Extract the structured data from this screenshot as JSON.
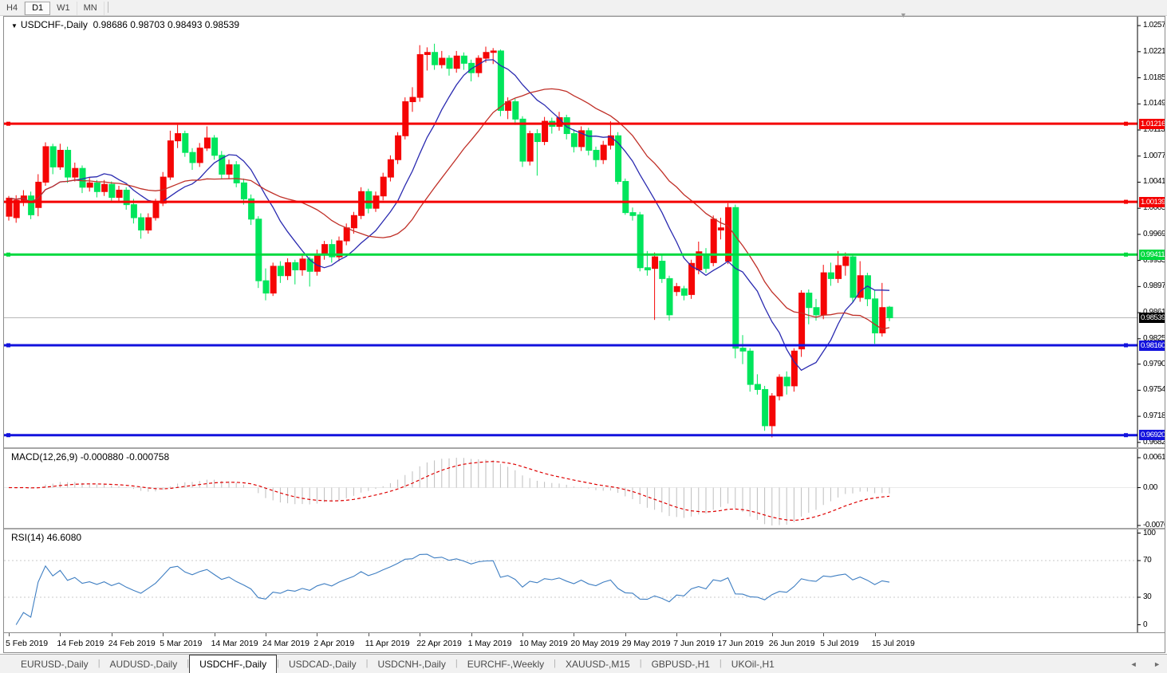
{
  "toolbar": {
    "buttons": [
      {
        "label": "H4",
        "active": false
      },
      {
        "label": "D1",
        "active": true
      },
      {
        "label": "W1",
        "active": false
      },
      {
        "label": "MN",
        "active": false
      }
    ]
  },
  "title": {
    "dropdown_icon": "▼",
    "symbol": "USDCHF-,Daily",
    "ohlc": "0.98686 0.98703 0.98493 0.98539"
  },
  "window": {
    "collapse_icon": "▼",
    "scroll_left_icon": "◄",
    "scroll_right_icon": "►"
  },
  "chart_data": {
    "type": "candlestick",
    "symbol": "USDCHF",
    "timeframe": "Daily",
    "quote": {
      "open": 0.98686,
      "high": 0.98703,
      "low": 0.98493,
      "close": 0.98539
    },
    "colors": {
      "up": "#F50505",
      "down": "#00E55C",
      "ma_fast": "#2A2AB0",
      "ma_slow": "#C03028",
      "hline_red": "#F40000",
      "hline_green": "#00D93E",
      "hline_blue": "#1212DD",
      "ask_line": "#B9B9B9",
      "current_tag_bg": "#000000",
      "macd_hist": "#BEBEBE",
      "macd_signal": "#DE0000",
      "rsi_line": "#3E7EC2",
      "level_dash": "#C8C8C8",
      "axis_line": "#000000"
    },
    "price_axis_labels": [
      "1.02570",
      "1.02210",
      "1.01850",
      "1.01490",
      "1.01130",
      "1.00770",
      "1.00410",
      "1.00050",
      "0.99690",
      "0.99330",
      "0.98970",
      "0.98610",
      "0.98250",
      "0.97900",
      "0.97540",
      "0.97180",
      "0.96820"
    ],
    "hlines": [
      {
        "price": 1.01216,
        "label": "1.01216",
        "color": "#F40000",
        "name": "resistance-upper"
      },
      {
        "price": 1.00139,
        "label": "1.00139",
        "color": "#F40000",
        "name": "resistance-lower"
      },
      {
        "price": 0.99411,
        "label": "0.99411",
        "color": "#00D93E",
        "name": "pivot-green"
      },
      {
        "price": 0.9816,
        "label": "0.98160",
        "color": "#1212DD",
        "name": "support-upper"
      },
      {
        "price": 0.9692,
        "label": "0.96920",
        "color": "#1212DD",
        "name": "support-lower"
      }
    ],
    "current_price": {
      "value": 0.98539,
      "label": "0.98539"
    },
    "moving_averages": [
      {
        "period": 10,
        "color": "#2A2AB0",
        "name": "ma-fast"
      },
      {
        "period": 21,
        "color": "#C03028",
        "name": "ma-slow"
      }
    ],
    "x_axis": {
      "labels": [
        "5 Feb 2019",
        "14 Feb 2019",
        "24 Feb 2019",
        "5 Mar 2019",
        "14 Mar 2019",
        "24 Mar 2019",
        "2 Apr 2019",
        "11 Apr 2019",
        "22 Apr 2019",
        "1 May 2019",
        "10 May 2019",
        "20 May 2019",
        "29 May 2019",
        "7 Jun 2019",
        "17 Jun 2019",
        "26 Jun 2019",
        "5 Jul 2019",
        "15 Jul 2019"
      ],
      "indices": [
        0,
        7,
        14,
        21,
        28,
        35,
        42,
        49,
        56,
        63,
        70,
        77,
        84,
        91,
        97,
        104,
        111,
        118
      ]
    },
    "candles": [
      [
        0.9994,
        1.0022,
        0.9988,
        1.0019
      ],
      [
        0.9992,
        1.0023,
        0.9985,
        1.0016
      ],
      [
        1.0016,
        1.003,
        1.0008,
        1.0022
      ],
      [
        1.0022,
        1.0028,
        0.999,
        0.9996
      ],
      [
        1.0006,
        1.0052,
        0.9994,
        1.0041
      ],
      [
        1.0041,
        1.0096,
        1.0036,
        1.009
      ],
      [
        1.009,
        1.0094,
        1.0052,
        1.0062
      ],
      [
        1.0062,
        1.0094,
        1.0058,
        1.0085
      ],
      [
        1.0085,
        1.009,
        1.004,
        1.0048
      ],
      [
        1.0048,
        1.0068,
        1.0042,
        1.006
      ],
      [
        1.006,
        1.0064,
        1.0026,
        1.0034
      ],
      [
        1.0034,
        1.0048,
        1.0028,
        1.004
      ],
      [
        1.004,
        1.0044,
        1.002,
        1.0028
      ],
      [
        1.0028,
        1.0044,
        1.0022,
        1.0038
      ],
      [
        1.0038,
        1.0042,
        1.0014,
        1.002
      ],
      [
        1.002,
        1.0036,
        1.0014,
        1.003
      ],
      [
        1.003,
        1.0034,
        1.0003,
        1.001
      ],
      [
        1.001,
        1.0018,
        0.9984,
        0.9992
      ],
      [
        0.9992,
        0.9998,
        0.9963,
        0.9975
      ],
      [
        0.9975,
        0.9998,
        0.997,
        0.9992
      ],
      [
        0.9992,
        1.0018,
        0.9988,
        1.0012
      ],
      [
        1.0012,
        1.0055,
        1.0008,
        1.0048
      ],
      [
        1.0048,
        1.0112,
        1.0044,
        1.0098
      ],
      [
        1.0098,
        1.012,
        1.0088,
        1.0108
      ],
      [
        1.0108,
        1.0112,
        1.0076,
        1.0082
      ],
      [
        1.0082,
        1.0088,
        1.0058,
        1.0068
      ],
      [
        1.0068,
        1.0095,
        1.0062,
        1.0088
      ],
      [
        1.0088,
        1.0118,
        1.0084,
        1.0102
      ],
      [
        1.0102,
        1.0106,
        1.0072,
        1.0078
      ],
      [
        1.0078,
        1.0084,
        1.0046,
        1.0052
      ],
      [
        1.0052,
        1.0072,
        1.0046,
        1.0065
      ],
      [
        1.0065,
        1.007,
        1.0034,
        1.004
      ],
      [
        1.004,
        1.0046,
        1.001,
        1.0018
      ],
      [
        1.0018,
        1.0024,
        0.9982,
        0.999
      ],
      [
        0.999,
        0.9994,
        0.9895,
        0.9905
      ],
      [
        0.9905,
        0.9922,
        0.9878,
        0.9888
      ],
      [
        0.9888,
        0.993,
        0.9884,
        0.9925
      ],
      [
        0.9925,
        0.9932,
        0.9902,
        0.9912
      ],
      [
        0.9912,
        0.9936,
        0.9906,
        0.993
      ],
      [
        0.993,
        0.9934,
        0.99,
        0.992
      ],
      [
        0.992,
        0.994,
        0.9912,
        0.9935
      ],
      [
        0.9935,
        0.9938,
        0.9897,
        0.9918
      ],
      [
        0.9918,
        0.9948,
        0.9912,
        0.9942
      ],
      [
        0.9942,
        0.996,
        0.9934,
        0.9955
      ],
      [
        0.9955,
        0.9962,
        0.993,
        0.9938
      ],
      [
        0.9938,
        0.9966,
        0.9932,
        0.996
      ],
      [
        0.996,
        0.9984,
        0.9954,
        0.9978
      ],
      [
        0.9978,
        1.0,
        0.997,
        0.9995
      ],
      [
        0.9995,
        1.0034,
        0.999,
        1.0028
      ],
      [
        1.0028,
        1.0032,
        0.9998,
        1.0005
      ],
      [
        1.0005,
        1.0028,
        1.0,
        1.0022
      ],
      [
        1.0022,
        1.0054,
        1.0016,
        1.0048
      ],
      [
        1.0048,
        1.0078,
        1.0042,
        1.0072
      ],
      [
        1.0072,
        1.011,
        1.0066,
        1.0105
      ],
      [
        1.0105,
        1.0158,
        1.01,
        1.0152
      ],
      [
        1.0152,
        1.0172,
        1.0138,
        1.0158
      ],
      [
        1.0158,
        1.023,
        1.0152,
        1.0217
      ],
      [
        1.0217,
        1.0227,
        1.0195,
        1.022
      ],
      [
        1.022,
        1.0232,
        1.0196,
        1.0203
      ],
      [
        1.0203,
        1.0222,
        1.0198,
        1.0212
      ],
      [
        1.0212,
        1.0216,
        1.0188,
        1.0198
      ],
      [
        1.0198,
        1.0222,
        1.0192,
        1.0215
      ],
      [
        1.0215,
        1.022,
        1.0196,
        1.0205
      ],
      [
        1.0205,
        1.021,
        1.018,
        1.0192
      ],
      [
        1.0192,
        1.0216,
        1.0186,
        1.0212
      ],
      [
        1.0212,
        1.0228,
        1.0206,
        1.022
      ],
      [
        1.022,
        1.0226,
        1.0204,
        1.0222
      ],
      [
        1.0222,
        1.0224,
        1.0132,
        1.014
      ],
      [
        1.014,
        1.0158,
        1.0128,
        1.0152
      ],
      [
        1.0152,
        1.0156,
        1.012,
        1.0128
      ],
      [
        1.0128,
        1.0132,
        1.0062,
        1.007
      ],
      [
        1.007,
        1.0112,
        1.0064,
        1.0108
      ],
      [
        1.0108,
        1.0114,
        1.005,
        1.0097
      ],
      [
        1.0097,
        1.0131,
        1.0092,
        1.0125
      ],
      [
        1.0125,
        1.013,
        1.0108,
        1.0118
      ],
      [
        1.0118,
        1.0138,
        1.0112,
        1.013
      ],
      [
        1.013,
        1.0134,
        1.01,
        1.0108
      ],
      [
        1.0108,
        1.0114,
        1.0082,
        1.009
      ],
      [
        1.009,
        1.0118,
        1.0084,
        1.0112
      ],
      [
        1.0112,
        1.0116,
        1.0078,
        1.0085
      ],
      [
        1.0085,
        1.009,
        1.0062,
        1.0072
      ],
      [
        1.0072,
        1.0098,
        1.0066,
        1.0092
      ],
      [
        1.0092,
        1.0125,
        1.0086,
        1.0105
      ],
      [
        1.0105,
        1.011,
        1.0038,
        1.0042
      ],
      [
        1.0042,
        1.0046,
        0.9996,
        0.9999
      ],
      [
        0.9999,
        1.0006,
        0.9988,
        0.9995
      ],
      [
        0.9996,
        1.0,
        0.9918,
        0.9923
      ],
      [
        0.9923,
        0.9946,
        0.9912,
        0.992
      ],
      [
        0.9922,
        0.9944,
        0.9851,
        0.9938
      ],
      [
        0.9932,
        0.994,
        0.9902,
        0.9908
      ],
      [
        0.9908,
        0.9912,
        0.985,
        0.9858
      ],
      [
        0.989,
        0.9902,
        0.9884,
        0.9897
      ],
      [
        0.9894,
        0.9898,
        0.9878,
        0.9885
      ],
      [
        0.9886,
        0.9934,
        0.988,
        0.9929
      ],
      [
        0.992,
        0.9959,
        0.9914,
        0.9945
      ],
      [
        0.9942,
        0.995,
        0.9916,
        0.9922
      ],
      [
        0.993,
        0.9995,
        0.9925,
        0.999
      ],
      [
        0.9975,
        0.9992,
        0.9962,
        0.9978
      ],
      [
        0.9932,
        1.0012,
        0.9928,
        1.0006
      ],
      [
        1.0006,
        1.001,
        0.9798,
        0.9812
      ],
      [
        0.9812,
        0.983,
        0.979,
        0.9808
      ],
      [
        0.9808,
        0.9812,
        0.9752,
        0.9762
      ],
      [
        0.9762,
        0.9776,
        0.9748,
        0.9755
      ],
      [
        0.9755,
        0.976,
        0.9698,
        0.9705
      ],
      [
        0.9705,
        0.975,
        0.9689,
        0.9746
      ],
      [
        0.9746,
        0.9776,
        0.974,
        0.9772
      ],
      [
        0.9772,
        0.978,
        0.9748,
        0.976
      ],
      [
        0.976,
        0.9812,
        0.9752,
        0.9808
      ],
      [
        0.9811,
        0.9892,
        0.98,
        0.9888
      ],
      [
        0.9888,
        0.9893,
        0.9845,
        0.9868
      ],
      [
        0.9868,
        0.988,
        0.985,
        0.9858
      ],
      [
        0.9858,
        0.9927,
        0.9852,
        0.9916
      ],
      [
        0.9916,
        0.993,
        0.9898,
        0.9908
      ],
      [
        0.9908,
        0.9946,
        0.9902,
        0.9926
      ],
      [
        0.9926,
        0.9944,
        0.9912,
        0.9938
      ],
      [
        0.9938,
        0.9942,
        0.9875,
        0.9882
      ],
      [
        0.9882,
        0.9932,
        0.9876,
        0.9912
      ],
      [
        0.9912,
        0.9916,
        0.987,
        0.988
      ],
      [
        0.988,
        0.9892,
        0.9818,
        0.9833
      ],
      [
        0.9833,
        0.9902,
        0.9828,
        0.9868
      ],
      [
        0.98686,
        0.98703,
        0.98493,
        0.98539
      ]
    ],
    "macd": {
      "name": "MACD(12,26,9)",
      "fast": 12,
      "slow": 26,
      "signal": 9,
      "values_text": "-0.000880 -0.000758",
      "value": -0.00088,
      "signal_value": -0.000758,
      "axis_labels": [
        "0.00613",
        "0.00",
        "-0.007612"
      ]
    },
    "rsi": {
      "name": "RSI(14)",
      "period": 14,
      "value_text": "46.6080",
      "value": 46.608,
      "axis_labels": [
        "100",
        "70",
        "30",
        "0"
      ],
      "levels": [
        70,
        30
      ]
    }
  },
  "tabs": {
    "items": [
      "EURUSD-,Daily",
      "AUDUSD-,Daily",
      "USDCHF-,Daily",
      "USDCAD-,Daily",
      "USDCNH-,Daily",
      "EURCHF-,Weekly",
      "XAUUSD-,M15",
      "GBPUSD-,H1",
      "UKOil-,H1"
    ],
    "active_index": 2
  }
}
